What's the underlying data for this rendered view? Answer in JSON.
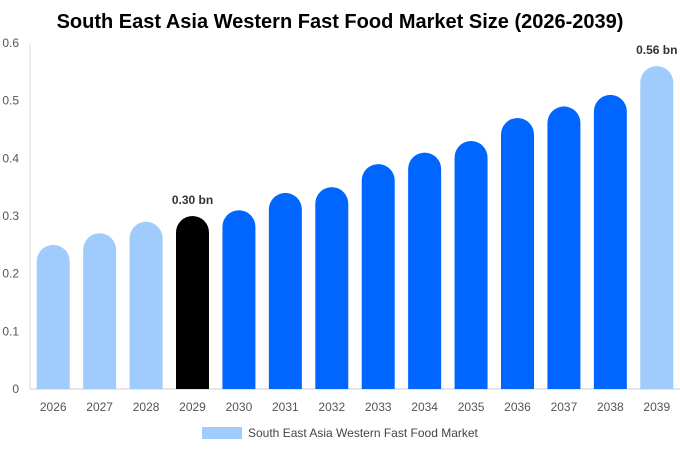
{
  "chart_data": {
    "type": "bar",
    "title": "South East Asia Western Fast Food Market Size (2026-2039)",
    "xlabel": "",
    "ylabel": "",
    "categories": [
      "2026",
      "2027",
      "2028",
      "2029",
      "2030",
      "2031",
      "2032",
      "2033",
      "2034",
      "2035",
      "2036",
      "2037",
      "2038",
      "2039"
    ],
    "series": [
      {
        "name": "South East Asia Western Fast Food Market",
        "values": [
          0.25,
          0.27,
          0.29,
          0.3,
          0.31,
          0.34,
          0.35,
          0.39,
          0.41,
          0.43,
          0.47,
          0.49,
          0.51,
          0.56
        ]
      }
    ],
    "bar_colors": [
      "#9fcbfd",
      "#9fcbfd",
      "#9fcbfd",
      "#000000",
      "#0066ff",
      "#0066ff",
      "#0066ff",
      "#0066ff",
      "#0066ff",
      "#0066ff",
      "#0066ff",
      "#0066ff",
      "#0066ff",
      "#9fcbfd"
    ],
    "data_labels": [
      {
        "index": 3,
        "text": "0.30 bn"
      },
      {
        "index": 13,
        "text": "0.56 bn"
      }
    ],
    "ylim": [
      0,
      0.6
    ],
    "yticks": [
      "0",
      "0.1",
      "0.2",
      "0.3",
      "0.4",
      "0.5",
      "0.6"
    ],
    "grid": false,
    "legend": {
      "position": "bottom",
      "label": "South East Asia Western Fast Food Market",
      "color": "#9fcbfd"
    }
  }
}
